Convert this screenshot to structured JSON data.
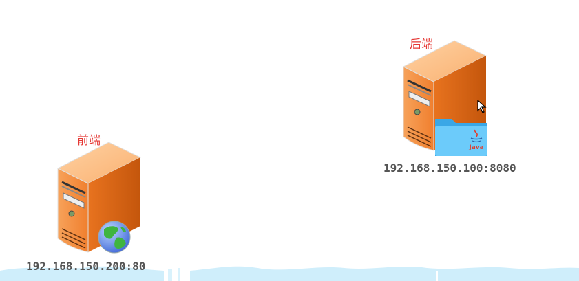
{
  "nodes": {
    "frontend": {
      "title": "前端",
      "address": "192.168.150.200:80"
    },
    "backend": {
      "title": "后端",
      "address": "192.168.150.100:8080",
      "folder_label": "Java"
    }
  },
  "colors": {
    "title_red": "#e53935",
    "server_orange": "#f28a3a",
    "server_dark": "#c9560a",
    "folder_blue": "#5cc0f5",
    "water_blue": "#cfeefb"
  }
}
